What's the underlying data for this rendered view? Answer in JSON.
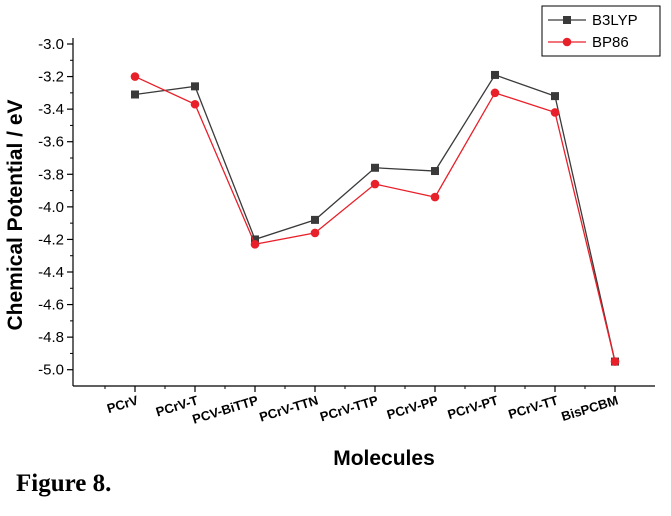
{
  "caption": "Figure 8.",
  "chart_data": {
    "type": "line",
    "xlabel": "Molecules",
    "ylabel": "Chemical Potential / eV",
    "categories": [
      "PCrV",
      "PCrV-T",
      "PCV-BiTTP",
      "PCrV-TTN",
      "PCrV-TTP",
      "PCrV-PP",
      "PCrV-PT",
      "PCrV-TT",
      "BisPCBM"
    ],
    "ylim": [
      -5.1,
      -3.0
    ],
    "yticks": [
      -3.0,
      -3.2,
      -3.4,
      -3.6,
      -3.8,
      -4.0,
      -4.2,
      -4.4,
      -4.6,
      -4.8,
      -5.0
    ],
    "ytick_labels": [
      "-3.0",
      "-3.2",
      "-3.4",
      "-3.6",
      "-3.8",
      "-4.0",
      "-4.2",
      "-4.4",
      "-4.6",
      "-4.8",
      "-5.0"
    ],
    "grid": false,
    "legend_position": "top-right",
    "series": [
      {
        "name": "B3LYP",
        "color": "#3a3a3a",
        "marker": "square",
        "values": [
          -3.31,
          -3.26,
          -4.2,
          -4.08,
          -3.76,
          -3.78,
          -3.19,
          -3.32,
          -4.95
        ]
      },
      {
        "name": "BP86",
        "color": "#e8202a",
        "marker": "circle",
        "values": [
          -3.2,
          -3.37,
          -4.23,
          -4.16,
          -3.86,
          -3.94,
          -3.3,
          -3.42,
          -4.95
        ]
      }
    ]
  }
}
